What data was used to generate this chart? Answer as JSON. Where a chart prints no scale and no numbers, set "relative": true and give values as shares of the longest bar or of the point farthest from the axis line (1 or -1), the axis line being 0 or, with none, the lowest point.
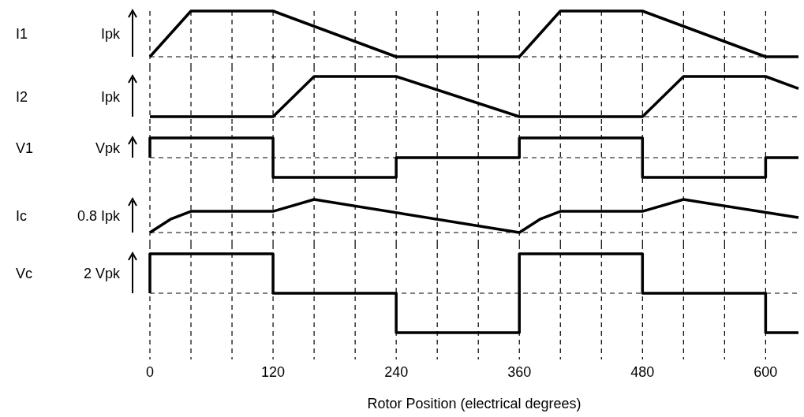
{
  "chart_data": [
    {
      "type": "line",
      "relative": true,
      "ylabel": "I1",
      "annotations": [
        "Ipk"
      ],
      "xlim": [
        0,
        632
      ],
      "xticks": [
        0,
        {
          "value": 40,
          "label": null
        },
        {
          "value": 80,
          "label": null
        },
        120,
        {
          "value": 160,
          "label": null
        },
        {
          "value": 200,
          "label": null
        },
        240,
        {
          "value": 280,
          "label": null
        },
        {
          "value": 320,
          "label": null
        },
        360,
        {
          "value": 400,
          "label": null
        },
        {
          "value": 440,
          "label": null
        },
        480,
        {
          "value": 520,
          "label": null
        },
        {
          "value": 560,
          "label": null
        },
        600
      ],
      "tick_labels": false,
      "grid": "x",
      "series": [
        {
          "color": "#000000",
          "x": [
            0,
            40,
            120,
            240,
            360,
            400,
            480,
            600,
            632
          ],
          "values": [
            0,
            1,
            1,
            0,
            0,
            1,
            1,
            0,
            0
          ]
        }
      ]
    },
    {
      "type": "line",
      "relative": true,
      "ylabel": "I2",
      "annotations": [
        "Ipk"
      ],
      "xlim": [
        0,
        632
      ],
      "xticks": [
        0,
        {
          "value": 40,
          "label": null
        },
        {
          "value": 80,
          "label": null
        },
        120,
        {
          "value": 160,
          "label": null
        },
        {
          "value": 200,
          "label": null
        },
        240,
        {
          "value": 280,
          "label": null
        },
        {
          "value": 320,
          "label": null
        },
        360,
        {
          "value": 400,
          "label": null
        },
        {
          "value": 440,
          "label": null
        },
        480,
        {
          "value": 520,
          "label": null
        },
        {
          "value": 560,
          "label": null
        },
        600
      ],
      "tick_labels": false,
      "grid": "x",
      "series": [
        {
          "color": "#000000",
          "x": [
            0,
            120,
            160,
            240,
            360,
            480,
            520,
            600,
            632
          ],
          "values": [
            0,
            0,
            1,
            1,
            0,
            0,
            1,
            1,
            0.7
          ]
        }
      ]
    },
    {
      "type": "line",
      "relative": true,
      "ylabel": "V1",
      "annotations": [
        "Vpk"
      ],
      "xlim": [
        0,
        632
      ],
      "xticks": [
        0,
        {
          "value": 40,
          "label": null
        },
        {
          "value": 80,
          "label": null
        },
        120,
        {
          "value": 160,
          "label": null
        },
        {
          "value": 200,
          "label": null
        },
        240,
        {
          "value": 280,
          "label": null
        },
        {
          "value": 320,
          "label": null
        },
        360,
        {
          "value": 400,
          "label": null
        },
        {
          "value": 440,
          "label": null
        },
        480,
        {
          "value": 520,
          "label": null
        },
        {
          "value": 560,
          "label": null
        },
        600
      ],
      "tick_labels": false,
      "grid": "x",
      "series": [
        {
          "color": "#000000",
          "x": [
            0,
            0,
            120,
            120,
            240,
            240,
            360,
            360,
            480,
            480,
            600,
            600,
            632
          ],
          "values": [
            0,
            1,
            1,
            -1,
            -1,
            0,
            0,
            1,
            1,
            -1,
            -1,
            0,
            0
          ]
        }
      ]
    },
    {
      "type": "line",
      "relative": true,
      "ylabel": "Ic",
      "annotations": [
        "0.8 Ipk"
      ],
      "xlim": [
        0,
        632
      ],
      "xticks": [
        0,
        {
          "value": 40,
          "label": null
        },
        {
          "value": 80,
          "label": null
        },
        120,
        {
          "value": 160,
          "label": null
        },
        {
          "value": 200,
          "label": null
        },
        240,
        {
          "value": 280,
          "label": null
        },
        {
          "value": 320,
          "label": null
        },
        360,
        {
          "value": 400,
          "label": null
        },
        {
          "value": 440,
          "label": null
        },
        480,
        {
          "value": 520,
          "label": null
        },
        {
          "value": 560,
          "label": null
        },
        600
      ],
      "tick_labels": false,
      "grid": "x",
      "series": [
        {
          "color": "#000000",
          "x": [
            0,
            20,
            40,
            120,
            160,
            360,
            380,
            400,
            480,
            520,
            632
          ],
          "values": [
            0,
            0.4,
            0.64,
            0.64,
            1,
            0,
            0.4,
            0.64,
            0.64,
            1,
            0.45
          ]
        }
      ]
    },
    {
      "type": "line",
      "relative": true,
      "ylabel": "Vc",
      "annotations": [
        "2 Vpk"
      ],
      "xlabel": "Rotor Position (electrical degrees)",
      "xlim": [
        0,
        632
      ],
      "xticks": [
        0,
        {
          "value": 40,
          "label": null
        },
        {
          "value": 80,
          "label": null
        },
        120,
        {
          "value": 160,
          "label": null
        },
        {
          "value": 200,
          "label": null
        },
        240,
        {
          "value": 280,
          "label": null
        },
        {
          "value": 320,
          "label": null
        },
        360,
        {
          "value": 400,
          "label": null
        },
        {
          "value": 440,
          "label": null
        },
        480,
        {
          "value": 520,
          "label": null
        },
        {
          "value": 560,
          "label": null
        },
        600
      ],
      "tick_labels": "x",
      "grid": "x",
      "series": [
        {
          "color": "#000000",
          "x": [
            0,
            0,
            120,
            120,
            240,
            240,
            360,
            360,
            480,
            480,
            600,
            600,
            632
          ],
          "values": [
            0,
            1,
            1,
            0,
            0,
            -1,
            -1,
            1,
            1,
            0,
            0,
            -1,
            -1
          ]
        }
      ]
    }
  ]
}
